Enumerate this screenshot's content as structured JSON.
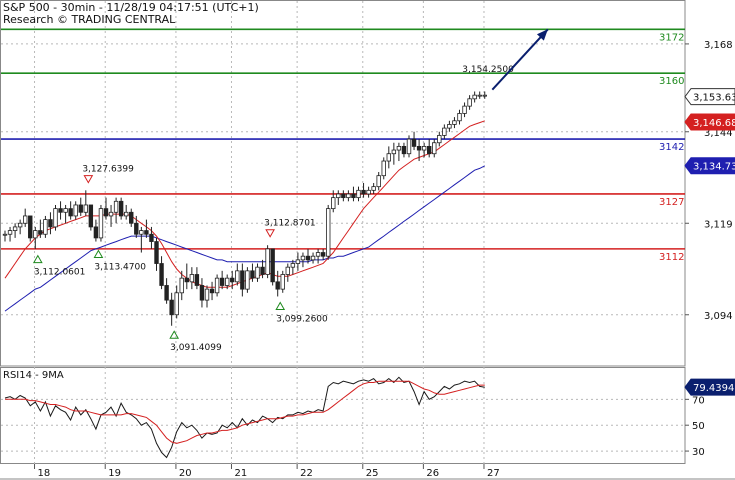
{
  "header": {
    "title": "S&P 500 - 30min - 11/28/19 04:17:51 (UTC+1)",
    "provider": "Research © TRADING CENTRAL"
  },
  "colors": {
    "resistance": "#1f8a1f",
    "pivot": "#1f1fb0",
    "support": "#d42020",
    "candle": "#222222",
    "ma_fast": "#d42020",
    "ma_slow": "#1f1fb0",
    "arrow": "#0a1f6e",
    "grid": "#b8b8b8",
    "marker_low": "#1f8a1f",
    "marker_high": "#d42020"
  },
  "chart_data": [
    {
      "type": "candlestick",
      "ylim": [
        3080,
        3180
      ],
      "y_ticks": [
        "3,168",
        "3,144",
        "3,119",
        "3,094"
      ],
      "y_tick_values": [
        3168,
        3144,
        3119,
        3094
      ],
      "x_ticks": [
        "18",
        "19",
        "20",
        "21",
        "22",
        "25",
        "26",
        "27"
      ],
      "x_tick_positions": [
        0.5,
        14.5,
        28.5,
        39.5,
        52.5,
        65.5,
        77.5,
        89.5
      ],
      "grid": true,
      "levels": [
        {
          "label": "3172",
          "value": 3172,
          "kind": "resistance"
        },
        {
          "label": "3160",
          "value": 3160,
          "kind": "resistance"
        },
        {
          "label": "3142",
          "value": 3142,
          "kind": "pivot"
        },
        {
          "label": "3127",
          "value": 3127,
          "kind": "support"
        },
        {
          "label": "3112",
          "value": 3112,
          "kind": "support"
        }
      ],
      "price_tags": [
        {
          "label": "3,153.63",
          "value": 3153.6,
          "kind": "last"
        },
        {
          "label": "3,146.68",
          "value": 3146.68,
          "kind": "ma_fast"
        },
        {
          "label": "3,134.73",
          "value": 3134.73,
          "kind": "ma_slow"
        }
      ],
      "annotations": [
        {
          "label": "3,127.6399",
          "bar": 16.5,
          "value": 3127.64,
          "type": "high"
        },
        {
          "label": "3,112.0601",
          "bar": 6.5,
          "value": 3112.06,
          "type": "low"
        },
        {
          "label": "3,113.4700",
          "bar": 18.5,
          "value": 3113.47,
          "type": "low"
        },
        {
          "label": "3,091.4099",
          "bar": 33.5,
          "value": 3091.41,
          "type": "low"
        },
        {
          "label": "3,112.8701",
          "bar": 52.5,
          "value": 3112.87,
          "type": "high"
        },
        {
          "label": "3,099.2600",
          "bar": 54.5,
          "value": 3099.26,
          "type": "low"
        },
        {
          "label": "3,154.2500",
          "bar": 95.5,
          "value": 3154.25,
          "type": "target"
        }
      ],
      "forecast_arrow": {
        "from_bar": 96.5,
        "from_value": 3155.5,
        "to_bar": 107.5,
        "to_value": 3172
      },
      "candles": [
        [
          3116,
          3117,
          3114,
          3116
        ],
        [
          3116,
          3118,
          3114,
          3117
        ],
        [
          3117,
          3119,
          3115,
          3118
        ],
        [
          3118,
          3120,
          3116,
          3119
        ],
        [
          3119,
          3123,
          3118,
          3121
        ],
        [
          3121,
          3121,
          3114,
          3115
        ],
        [
          3115,
          3118,
          3112,
          3117
        ],
        [
          3117,
          3120,
          3115,
          3116
        ],
        [
          3116,
          3121,
          3115,
          3120
        ],
        [
          3120,
          3122,
          3116,
          3118
        ],
        [
          3118,
          3124,
          3117,
          3123
        ],
        [
          3123,
          3125,
          3120,
          3122
        ],
        [
          3122,
          3124,
          3119,
          3123
        ],
        [
          3123,
          3125,
          3120,
          3121
        ],
        [
          3121,
          3125,
          3120,
          3124
        ],
        [
          3124,
          3126,
          3121,
          3122
        ],
        [
          3122,
          3128,
          3121,
          3124
        ],
        [
          3124,
          3124,
          3117,
          3118
        ],
        [
          3118,
          3120,
          3114,
          3115
        ],
        [
          3115,
          3124,
          3114,
          3123
        ],
        [
          3123,
          3126,
          3120,
          3121
        ],
        [
          3121,
          3124,
          3118,
          3122
        ],
        [
          3122,
          3126,
          3119,
          3125
        ],
        [
          3125,
          3126,
          3120,
          3121
        ],
        [
          3121,
          3124,
          3120,
          3122
        ],
        [
          3122,
          3123,
          3118,
          3119
        ],
        [
          3119,
          3121,
          3115,
          3116
        ],
        [
          3116,
          3118,
          3111,
          3117
        ],
        [
          3117,
          3120,
          3115,
          3116
        ],
        [
          3116,
          3118,
          3112,
          3114
        ],
        [
          3114,
          3115,
          3106,
          3108
        ],
        [
          3108,
          3110,
          3101,
          3102
        ],
        [
          3102,
          3104,
          3097,
          3098
        ],
        [
          3098,
          3100,
          3091,
          3094
        ],
        [
          3094,
          3102,
          3093,
          3100
        ],
        [
          3100,
          3106,
          3098,
          3104
        ],
        [
          3104,
          3108,
          3101,
          3103
        ],
        [
          3103,
          3107,
          3101,
          3105
        ],
        [
          3105,
          3107,
          3101,
          3102
        ],
        [
          3102,
          3104,
          3096,
          3098
        ],
        [
          3098,
          3102,
          3096,
          3101
        ],
        [
          3101,
          3103,
          3098,
          3100
        ],
        [
          3100,
          3105,
          3099,
          3104
        ],
        [
          3104,
          3106,
          3101,
          3102
        ],
        [
          3102,
          3105,
          3101,
          3104
        ],
        [
          3104,
          3106,
          3101,
          3103
        ],
        [
          3103,
          3108,
          3102,
          3106
        ],
        [
          3106,
          3108,
          3099,
          3101
        ],
        [
          3101,
          3107,
          3100,
          3106
        ],
        [
          3106,
          3108,
          3103,
          3104
        ],
        [
          3104,
          3108,
          3103,
          3107
        ],
        [
          3107,
          3109,
          3104,
          3105
        ],
        [
          3105,
          3113,
          3104,
          3112
        ],
        [
          3112,
          3112,
          3102,
          3103
        ],
        [
          3103,
          3106,
          3099,
          3101
        ],
        [
          3101,
          3106,
          3100,
          3105
        ],
        [
          3105,
          3108,
          3103,
          3107
        ],
        [
          3107,
          3109,
          3105,
          3108
        ],
        [
          3108,
          3111,
          3106,
          3109
        ],
        [
          3109,
          3111,
          3107,
          3110
        ],
        [
          3110,
          3112,
          3108,
          3109
        ],
        [
          3109,
          3111,
          3108,
          3110
        ],
        [
          3110,
          3112,
          3108,
          3111
        ],
        [
          3111,
          3112,
          3109,
          3110
        ],
        [
          3110,
          3124,
          3109,
          3123
        ],
        [
          3123,
          3128,
          3122,
          3126
        ],
        [
          3126,
          3128,
          3124,
          3127
        ],
        [
          3127,
          3128,
          3125,
          3126
        ],
        [
          3126,
          3128,
          3125,
          3127
        ],
        [
          3127,
          3129,
          3125,
          3126
        ],
        [
          3126,
          3129,
          3125,
          3128
        ],
        [
          3128,
          3130,
          3126,
          3127
        ],
        [
          3127,
          3129,
          3126,
          3128
        ],
        [
          3128,
          3130,
          3127,
          3129
        ],
        [
          3129,
          3133,
          3128,
          3132
        ],
        [
          3132,
          3137,
          3131,
          3136
        ],
        [
          3136,
          3140,
          3134,
          3138
        ],
        [
          3138,
          3141,
          3135,
          3139
        ],
        [
          3139,
          3141,
          3136,
          3140
        ],
        [
          3140,
          3141,
          3137,
          3138
        ],
        [
          3138,
          3143,
          3137,
          3142
        ],
        [
          3142,
          3144,
          3139,
          3140
        ],
        [
          3140,
          3142,
          3136,
          3139
        ],
        [
          3139,
          3141,
          3137,
          3140
        ],
        [
          3140,
          3142,
          3137,
          3138
        ],
        [
          3138,
          3142,
          3137,
          3141
        ],
        [
          3141,
          3144,
          3140,
          3143
        ],
        [
          3143,
          3146,
          3142,
          3145
        ],
        [
          3145,
          3147,
          3144,
          3146
        ],
        [
          3146,
          3148,
          3145,
          3147
        ],
        [
          3147,
          3150,
          3146,
          3149
        ],
        [
          3149,
          3152,
          3148,
          3151
        ],
        [
          3151,
          3154,
          3150,
          3153
        ],
        [
          3153,
          3155,
          3152,
          3154
        ],
        [
          3154,
          3155,
          3153,
          3154
        ],
        [
          3154,
          3155,
          3153,
          3154
        ]
      ],
      "ma_fast": [
        3104,
        3106,
        3108,
        3110,
        3112,
        3113.5,
        3115,
        3116,
        3117,
        3117.5,
        3118,
        3118.5,
        3119,
        3119.5,
        3120,
        3120.5,
        3121,
        3121,
        3121,
        3121,
        3121.5,
        3121.5,
        3121.5,
        3121.5,
        3121.5,
        3121,
        3120,
        3119,
        3118,
        3117,
        3115.5,
        3113.5,
        3111,
        3108.5,
        3106.5,
        3105,
        3104,
        3103,
        3102.5,
        3102,
        3101.5,
        3101.5,
        3101.5,
        3101.5,
        3101.5,
        3102,
        3102.5,
        3103,
        3103.5,
        3104,
        3104.5,
        3105,
        3105.5,
        3105,
        3104.5,
        3104.5,
        3104.5,
        3105,
        3105.5,
        3106,
        3106.5,
        3107,
        3107.5,
        3108,
        3109.5,
        3111,
        3113,
        3115,
        3117,
        3119,
        3121,
        3123,
        3124.5,
        3126,
        3127.5,
        3129,
        3130.5,
        3132,
        3133.5,
        3134.5,
        3135.5,
        3136.5,
        3137,
        3137.5,
        3138,
        3138.5,
        3139.5,
        3140.5,
        3141.5,
        3142.5,
        3143.5,
        3144.5,
        3145.5,
        3146,
        3146.5,
        3147
      ],
      "ma_slow": [
        3095,
        3096,
        3097,
        3098,
        3099,
        3100,
        3101,
        3101.5,
        3102.5,
        3103.5,
        3104.5,
        3105.5,
        3106.5,
        3107.5,
        3108.5,
        3109.5,
        3110.5,
        3111.5,
        3112,
        3112.5,
        3113,
        3113.5,
        3114,
        3114.5,
        3115,
        3115.5,
        3115.5,
        3115.5,
        3115.5,
        3115.5,
        3115,
        3114.5,
        3114,
        3113.5,
        3113,
        3112.5,
        3112,
        3111.5,
        3111,
        3110.5,
        3110,
        3109.5,
        3109,
        3109,
        3108.5,
        3108.5,
        3108.5,
        3108.5,
        3108.5,
        3108.5,
        3108.5,
        3108.5,
        3108.5,
        3108.5,
        3108.5,
        3108.5,
        3108.5,
        3108.5,
        3108.5,
        3108.5,
        3108.5,
        3109,
        3109,
        3109,
        3109.5,
        3109.5,
        3110,
        3110,
        3110.5,
        3111,
        3111.5,
        3112,
        3112.5,
        3113.5,
        3114.5,
        3115.5,
        3116.5,
        3117.5,
        3118.5,
        3119.5,
        3120.5,
        3121.5,
        3122.5,
        3123.5,
        3124.5,
        3125.5,
        3126.5,
        3127.5,
        3128.5,
        3129.5,
        3130.5,
        3131.5,
        3132.5,
        3133.5,
        3134,
        3134.7
      ]
    },
    {
      "type": "line",
      "title": "RSI14 - 9MA",
      "ylim": [
        20,
        95
      ],
      "y_ticks": [
        "70",
        "50",
        "30"
      ],
      "y_tick_values": [
        70,
        50,
        30
      ],
      "last_value_label": "79.4394",
      "last_value": 79.4394,
      "grid": true,
      "series": [
        {
          "kind": "rsi",
          "values": [
            71,
            72,
            70,
            73,
            71,
            65,
            68,
            61,
            68,
            57,
            65,
            62,
            60,
            54,
            64,
            58,
            62,
            55,
            47,
            58,
            60,
            64,
            57,
            67,
            60,
            58,
            55,
            50,
            52,
            47,
            36,
            29,
            25,
            33,
            45,
            52,
            48,
            50,
            46,
            40,
            44,
            43,
            44,
            50,
            48,
            52,
            48,
            55,
            50,
            54,
            52,
            57,
            55,
            52,
            56,
            55,
            58,
            58,
            60,
            59,
            61,
            60,
            62,
            61,
            80,
            83,
            82,
            84,
            83,
            82,
            84,
            85,
            84,
            86,
            82,
            83,
            86,
            83,
            87,
            83,
            84,
            76,
            66,
            76,
            70,
            72,
            76,
            80,
            78,
            81,
            82,
            84,
            83,
            84,
            80,
            79.4
          ]
        },
        {
          "kind": "ma",
          "values": [
            70,
            70,
            70,
            70,
            70,
            69,
            69,
            68,
            67,
            66,
            66,
            65,
            64,
            62,
            61,
            61,
            61,
            60,
            59,
            58,
            58,
            58,
            58,
            58,
            59,
            59,
            58,
            57,
            56,
            53,
            50,
            45,
            40,
            37,
            36,
            37,
            38,
            40,
            42,
            43,
            44,
            44,
            45,
            46,
            46,
            47,
            48,
            50,
            51,
            52,
            53,
            54,
            55,
            55,
            55,
            56,
            57,
            57,
            58,
            58,
            59,
            60,
            60,
            60,
            62,
            65,
            68,
            71,
            74,
            77,
            80,
            82,
            83,
            83,
            84,
            84,
            84,
            84,
            84,
            84,
            84,
            82,
            80,
            78,
            77,
            75,
            74,
            74,
            75,
            76,
            77,
            78,
            79,
            80,
            81,
            81
          ]
        }
      ]
    }
  ]
}
